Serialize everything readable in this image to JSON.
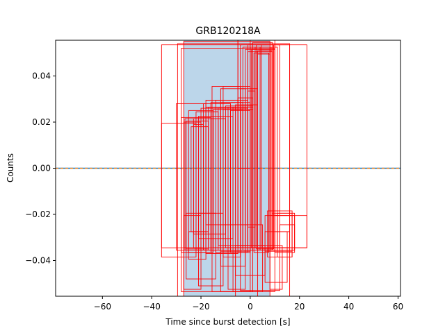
{
  "chart_data": {
    "type": "scatter",
    "title": "GRB120218A",
    "xlabel": "Time since burst detection [s]",
    "ylabel": "Counts",
    "xlim": [
      -79,
      61
    ],
    "ylim": [
      -0.0555,
      0.0555
    ],
    "xticks": [
      -60,
      -40,
      -20,
      0,
      20,
      40,
      60
    ],
    "xtick_labels": [
      "−60",
      "−40",
      "−20",
      "0",
      "20",
      "40",
      "60"
    ],
    "yticks": [
      -0.04,
      -0.02,
      0.0,
      0.02,
      0.04
    ],
    "ytick_labels": [
      "−0.04",
      "−0.02",
      "0.00",
      "0.02",
      "0.04"
    ],
    "grid": false,
    "shaded_interval": {
      "x0": -27,
      "x1": 8.2,
      "color": "#bcd6ea"
    },
    "baseline": {
      "y": 0.0,
      "color": "#1f77b4",
      "style": "dashed-over-solid"
    },
    "box_color": "#ff0000",
    "boxes": [
      [
        -36,
        23,
        0.0535,
        -0.0345
      ],
      [
        -29.5,
        16,
        0.054,
        -0.0555
      ],
      [
        -28,
        10,
        0.052,
        -0.0535
      ],
      [
        -27,
        8,
        0.055,
        -0.0555
      ],
      [
        -36,
        -22,
        0.0195,
        -0.0385
      ],
      [
        -30,
        -18,
        0.028,
        -0.0355
      ],
      [
        -28,
        -16,
        0.022,
        -0.0365
      ],
      [
        -27,
        -20,
        0.02,
        -0.0345
      ],
      [
        -26.5,
        -19,
        0.0215,
        -0.0355
      ],
      [
        -26,
        -17,
        0.0205,
        -0.035
      ],
      [
        -25,
        -15,
        0.025,
        -0.0365
      ],
      [
        -24,
        -17,
        0.018,
        -0.0275
      ],
      [
        -23,
        -19,
        0.019,
        -0.0345
      ],
      [
        -22,
        -13,
        0.0245,
        -0.0355
      ],
      [
        -20,
        -12,
        0.026,
        -0.0355
      ],
      [
        -27,
        -20,
        -0.0205,
        -0.0525
      ],
      [
        -26,
        -14,
        -0.0195,
        -0.048
      ],
      [
        -25,
        -18,
        -0.0275,
        -0.0395
      ],
      [
        -21,
        -11,
        -0.0195,
        -0.051
      ],
      [
        -19,
        -8,
        0.028,
        -0.0355
      ],
      [
        -18,
        -5,
        0.0295,
        -0.037
      ],
      [
        -17,
        -4,
        0.0265,
        -0.0355
      ],
      [
        -16,
        -3,
        0.0285,
        -0.0355
      ],
      [
        -15,
        -3,
        0.0255,
        -0.0345
      ],
      [
        -14,
        -1,
        0.0295,
        -0.0365
      ],
      [
        -13,
        -1,
        0.026,
        -0.0335
      ],
      [
        -12,
        0,
        0.0285,
        -0.036
      ],
      [
        -11,
        1,
        0.0255,
        -0.0355
      ],
      [
        -10,
        1,
        0.027,
        -0.0345
      ],
      [
        -15.5,
        0,
        0.0355,
        -0.0535
      ],
      [
        -12,
        -2,
        0.0345,
        -0.0425
      ],
      [
        -11,
        -4,
        0.0355,
        -0.0385
      ],
      [
        -9,
        -2,
        0.0265,
        -0.0525
      ],
      [
        -8,
        0,
        0.025,
        -0.0365
      ],
      [
        -7,
        1,
        0.0265,
        -0.0535
      ],
      [
        -5,
        1,
        0.0305,
        -0.0335
      ],
      [
        -6,
        3,
        0.0275,
        -0.0555
      ],
      [
        -5,
        0,
        0.0565,
        0.0
      ],
      [
        -5,
        10,
        0.0575,
        -0.0345
      ],
      [
        -4,
        12,
        0.0535,
        -0.053
      ],
      [
        -3,
        11,
        0.0525,
        -0.0355
      ],
      [
        -2,
        10,
        0.0515,
        -0.0345
      ],
      [
        -1,
        10,
        0.0535,
        -0.0355
      ],
      [
        -1,
        9,
        0.0505,
        -0.0335
      ],
      [
        0,
        9,
        0.0525,
        -0.0355
      ],
      [
        0.5,
        8,
        0.0515,
        -0.0345
      ],
      [
        1,
        9,
        0.0545,
        -0.0355
      ],
      [
        1.5,
        7.5,
        0.05,
        -0.0365
      ],
      [
        2,
        8,
        0.0525,
        -0.0345
      ],
      [
        2.5,
        9.5,
        0.0535,
        -0.035
      ],
      [
        3,
        9,
        0.051,
        -0.0355
      ],
      [
        3,
        8,
        0.0495,
        -0.0345
      ],
      [
        4,
        8.5,
        0.0525,
        -0.0355
      ],
      [
        4.5,
        16,
        0.0535,
        -0.0345
      ],
      [
        -12,
        5,
        -0.0245,
        -0.0535
      ],
      [
        -6,
        6,
        -0.0335,
        -0.0465
      ],
      [
        6,
        17,
        -0.0205,
        -0.036
      ],
      [
        6,
        15,
        -0.0275,
        -0.0495
      ],
      [
        7,
        17,
        -0.0185,
        -0.0385
      ],
      [
        8,
        13,
        -0.0335,
        -0.0525
      ],
      [
        9,
        18,
        -0.0195,
        -0.0355
      ],
      [
        10,
        18,
        -0.0205,
        -0.0365
      ],
      [
        10,
        16,
        -0.0275,
        -0.0345
      ],
      [
        11,
        17,
        -0.0195,
        -0.0385
      ],
      [
        12,
        18,
        -0.0245,
        -0.0355
      ],
      [
        8,
        23,
        -0.0205,
        -0.0345
      ],
      [
        -1,
        2,
        0.0335,
        -0.0255
      ],
      [
        -4,
        3,
        0.0345,
        -0.0245
      ],
      [
        -18,
        -6,
        0.0265,
        -0.0245
      ],
      [
        -23,
        -10,
        0.0215,
        -0.0285
      ],
      [
        -21,
        -7,
        0.0225,
        -0.0305
      ]
    ]
  }
}
